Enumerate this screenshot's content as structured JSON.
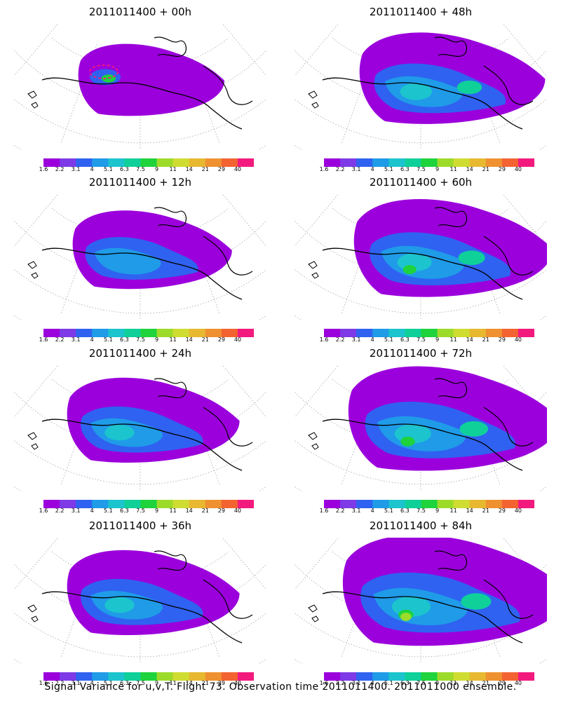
{
  "figure": {
    "caption": "Signal Variance for u,v,T. Flight 73. Observation time 2011011400. 2011011000 ensemble."
  },
  "colorbar": {
    "labels": [
      "1.6",
      "2.2",
      "3.1",
      "4",
      "5.1",
      "6.3",
      "7.5",
      "9",
      "11",
      "14",
      "21",
      "29",
      "40"
    ],
    "colors": [
      "#9b00dc",
      "#7d3ae6",
      "#2f62f0",
      "#1f9be8",
      "#1cc4ce",
      "#10d09a",
      "#1ed33c",
      "#9ddb2a",
      "#cfdc32",
      "#e7b830",
      "#ef9130",
      "#f36331",
      "#f21a7d"
    ]
  },
  "panels": [
    {
      "title": "2011011400 + 00h",
      "stage": 0
    },
    {
      "title": "2011011400 + 48h",
      "stage": 3
    },
    {
      "title": "2011011400 + 12h",
      "stage": 1
    },
    {
      "title": "2011011400 + 60h",
      "stage": 4
    },
    {
      "title": "2011011400 + 24h",
      "stage": 2
    },
    {
      "title": "2011011400 + 72h",
      "stage": 5
    },
    {
      "title": "2011011400 + 36h",
      "stage": 2
    },
    {
      "title": "2011011400 + 84h",
      "stage": 6
    }
  ]
}
